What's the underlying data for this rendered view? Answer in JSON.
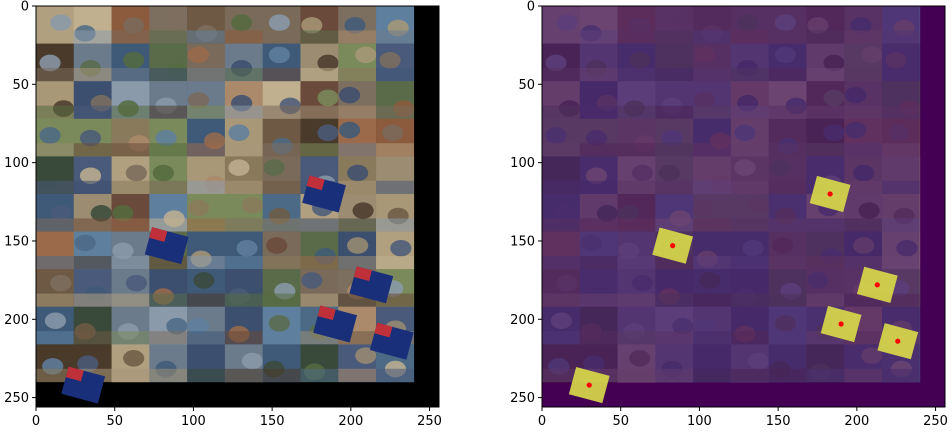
{
  "figure": {
    "panels": [
      {
        "name": "left-image-panel",
        "x_ticks": [
          "0",
          "50",
          "100",
          "150",
          "200",
          "250"
        ],
        "y_ticks": [
          "0",
          "50",
          "100",
          "150",
          "200",
          "250"
        ]
      },
      {
        "name": "right-image-panel",
        "x_ticks": [
          "0",
          "50",
          "100",
          "150",
          "200",
          "250"
        ],
        "y_ticks": [
          "0",
          "50",
          "100",
          "150",
          "200",
          "250"
        ]
      }
    ],
    "axis_range": [
      0,
      256
    ],
    "grid_cells": 10,
    "colors": {
      "background": "#000000",
      "overlay_bg": "#440154",
      "overlay_tint": "#4a1a66",
      "highlight": "#d8d84a",
      "center_dot": "#ff0000",
      "flag_blue": "#1a2f7a"
    },
    "detections_data_coords": [
      {
        "x": 183,
        "y": 120
      },
      {
        "x": 83,
        "y": 153
      },
      {
        "x": 213,
        "y": 178
      },
      {
        "x": 190,
        "y": 203
      },
      {
        "x": 226,
        "y": 214
      },
      {
        "x": 30,
        "y": 242
      }
    ]
  }
}
